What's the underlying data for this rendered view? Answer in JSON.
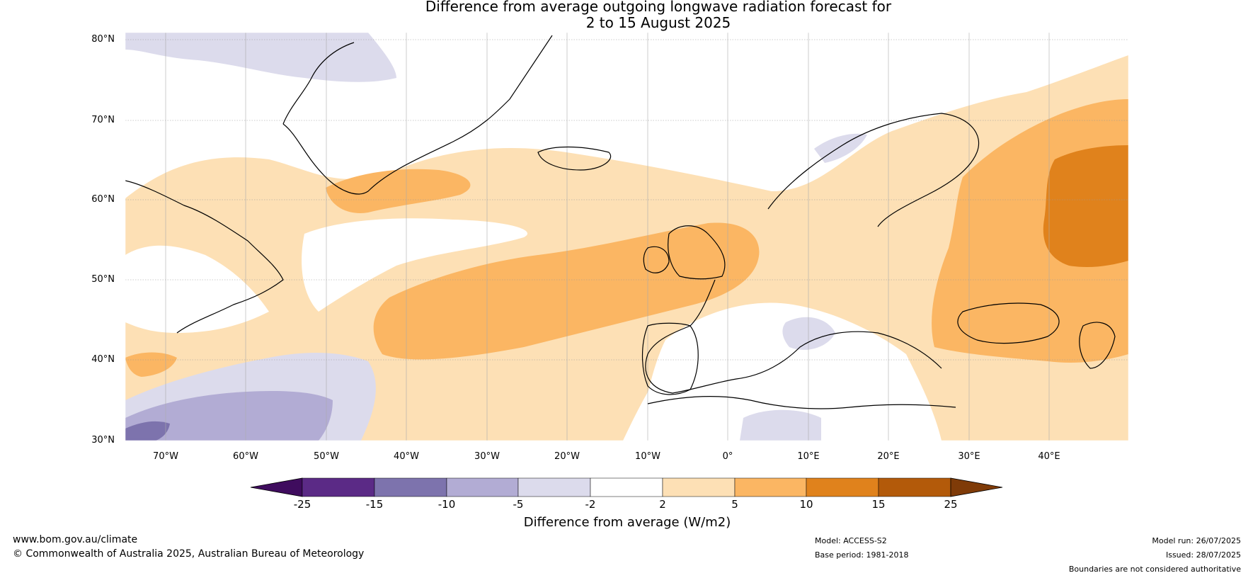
{
  "title": {
    "line1": "Difference from average outgoing longwave radiation forecast for",
    "line2": "2 to 15 August 2025"
  },
  "map": {
    "lat_labels": [
      "80°N",
      "70°N",
      "60°N",
      "50°N",
      "40°N",
      "30°N"
    ],
    "lon_labels": [
      "70°W",
      "60°W",
      "50°W",
      "40°W",
      "30°W",
      "20°W",
      "10°W",
      "0°",
      "10°E",
      "20°E",
      "30°E",
      "40°E"
    ],
    "extent": {
      "lon": [
        -75,
        50
      ],
      "lat": [
        30,
        81
      ]
    }
  },
  "colorbar": {
    "title": "Difference from average (W/m2)",
    "ticks": [
      "-25",
      "-15",
      "-10",
      "-5",
      "-2",
      "2",
      "5",
      "10",
      "15",
      "25"
    ],
    "colors": [
      "#3f0c5e",
      "#5b2a86",
      "#7d73ad",
      "#b2acd4",
      "#dcdbec",
      "#ffffff",
      "#fde0b5",
      "#fbb663",
      "#e0821c",
      "#b35a0a",
      "#7f3b08"
    ]
  },
  "footer": {
    "url": "www.bom.gov.au/climate",
    "copyright": "© Commonwealth of Australia 2025, Australian Bureau of Meteorology",
    "model": "Model: ACCESS-S2",
    "base_period": "Base period: 1981-2018",
    "model_run": "Model run: 26/07/2025",
    "issued": "Issued: 28/07/2025",
    "disclaimer": "Boundaries are not considered authoritative"
  }
}
